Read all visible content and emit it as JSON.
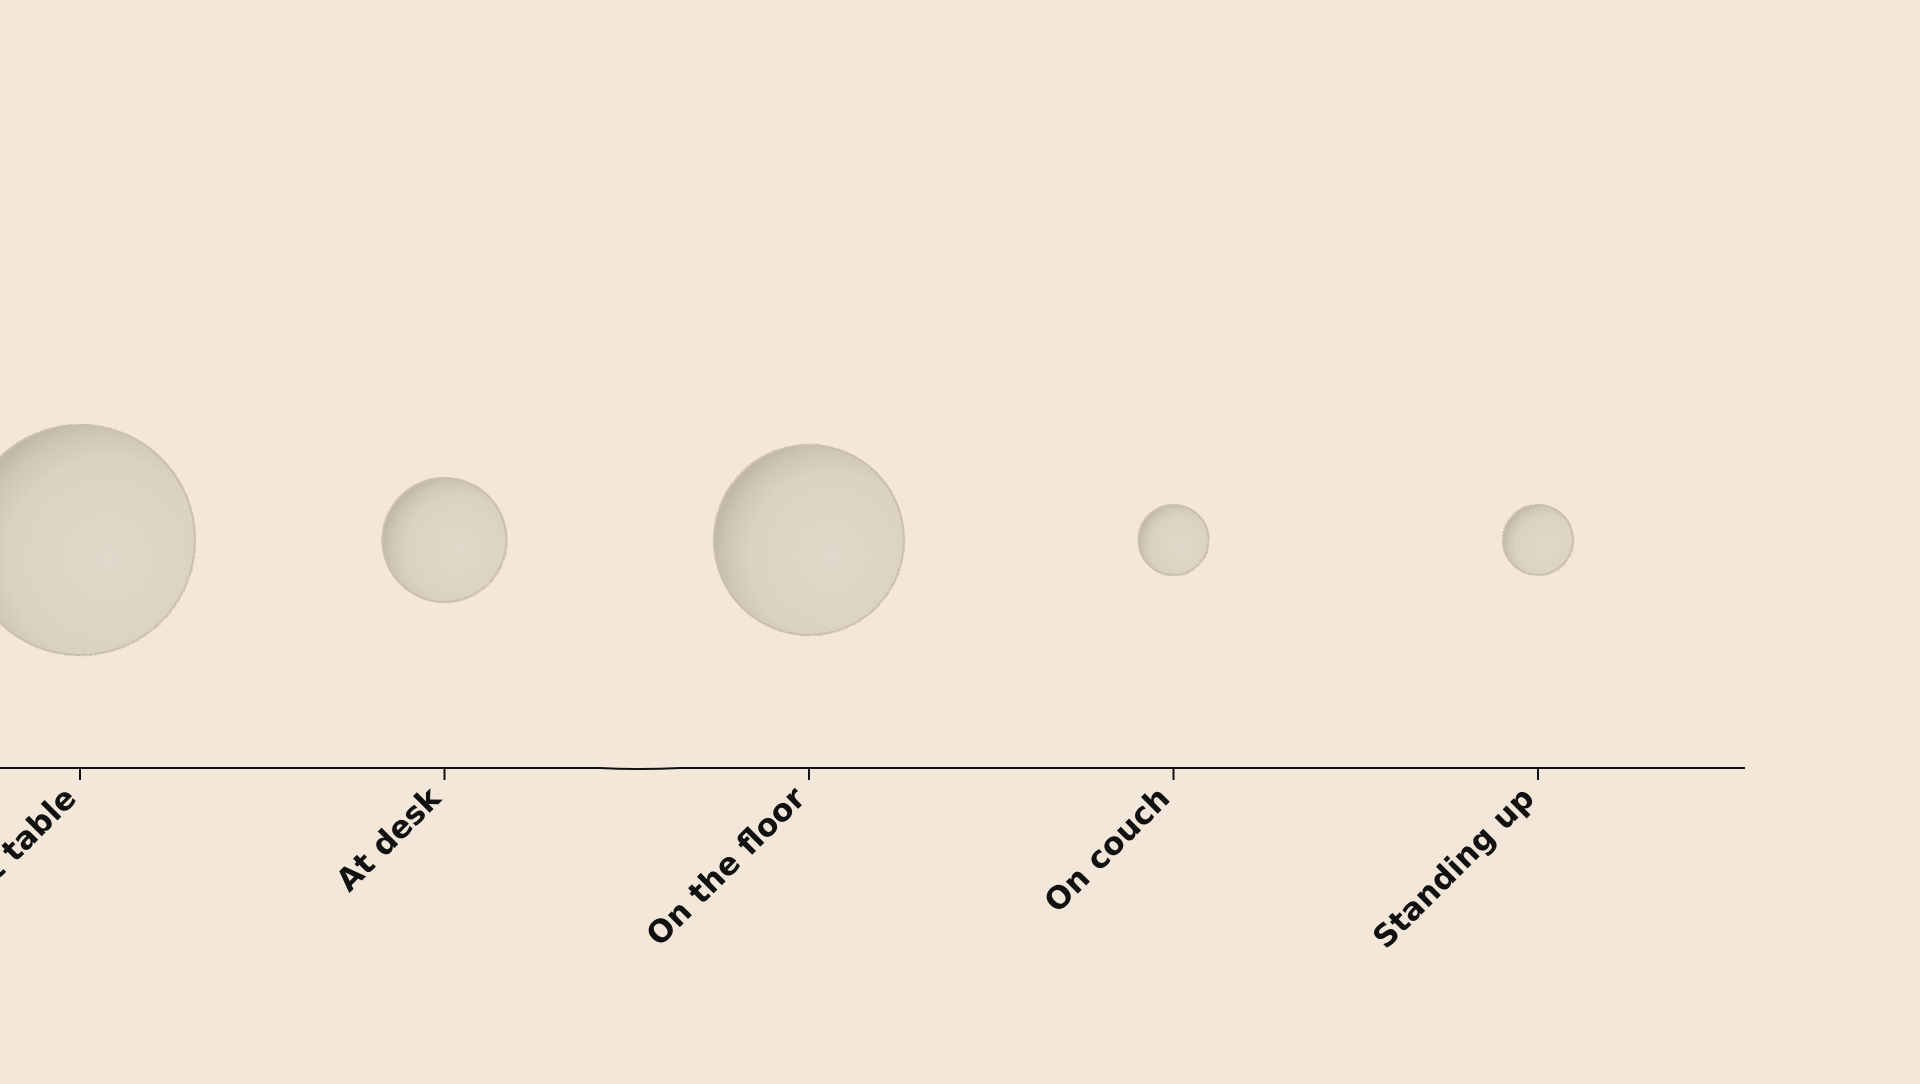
{
  "colors": {
    "background": "#f2e7d8",
    "bubble_fill": "#ddd4c6",
    "bubble_rim": "#c9bfb1",
    "axis": "#111111"
  },
  "chart_data": {
    "type": "scatter",
    "categories": [
      "At table",
      "At desk",
      "On the floor",
      "On couch",
      "Standing up"
    ],
    "sizes": [
      115,
      62,
      95,
      35,
      35
    ],
    "grid": false,
    "legend": "none"
  }
}
